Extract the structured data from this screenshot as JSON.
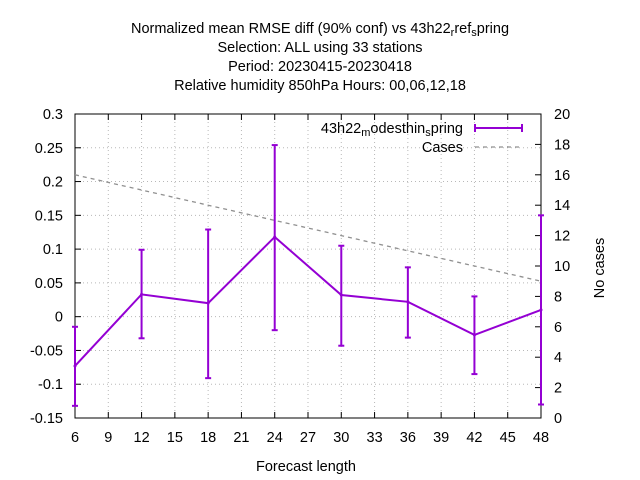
{
  "chart_data": {
    "type": "line",
    "title_lines": [
      "Normalized mean RMSE diff (90% conf) vs 43h22",
      "Selection: ALL using    33 stations",
      "Period: 20230415-20230418",
      "Relative humidity 850hPa   Hours:  00,06,12,18"
    ],
    "title_ref": {
      "base": "ref",
      "sub_before": "r",
      "sub_after": "s",
      "tail": "pring"
    },
    "xlabel": "Forecast length",
    "ylabel": "",
    "y2label": "No cases",
    "xlim": [
      6,
      48
    ],
    "ylim": [
      -0.15,
      0.3
    ],
    "y2lim": [
      0,
      20
    ],
    "x_ticks": [
      6,
      9,
      12,
      15,
      18,
      21,
      24,
      27,
      30,
      33,
      36,
      39,
      42,
      45,
      48
    ],
    "y_ticks": [
      "-0.15",
      "-0.1",
      "-0.05",
      "0",
      "0.05",
      "0.1",
      "0.15",
      "0.2",
      "0.25",
      "0.3"
    ],
    "y2_ticks": [
      "0",
      "2",
      "4",
      "6",
      "8",
      "10",
      "12",
      "14",
      "16",
      "18",
      "20"
    ],
    "grid": true,
    "legend_position": "top-right",
    "series": [
      {
        "name_base": "43h22",
        "name_sub1": "m",
        "name_mid": "odesthin",
        "name_sub2": "s",
        "name_tail": "pring",
        "color": "#9400d3",
        "axis": "y1",
        "x": [
          6,
          12,
          18,
          24,
          30,
          36,
          42,
          48
        ],
        "y": [
          -0.073,
          0.033,
          0.02,
          0.118,
          0.032,
          0.022,
          -0.027,
          0.01
        ],
        "err_low": [
          -0.132,
          -0.032,
          -0.091,
          -0.02,
          -0.043,
          -0.031,
          -0.085,
          -0.13
        ],
        "err_high": [
          -0.015,
          0.099,
          0.129,
          0.254,
          0.105,
          0.073,
          0.03,
          0.15
        ]
      },
      {
        "name": "Cases",
        "color": "#909090",
        "dashed": true,
        "axis": "y2",
        "x": [
          6,
          48
        ],
        "y": [
          16.0,
          9.0
        ]
      }
    ]
  }
}
